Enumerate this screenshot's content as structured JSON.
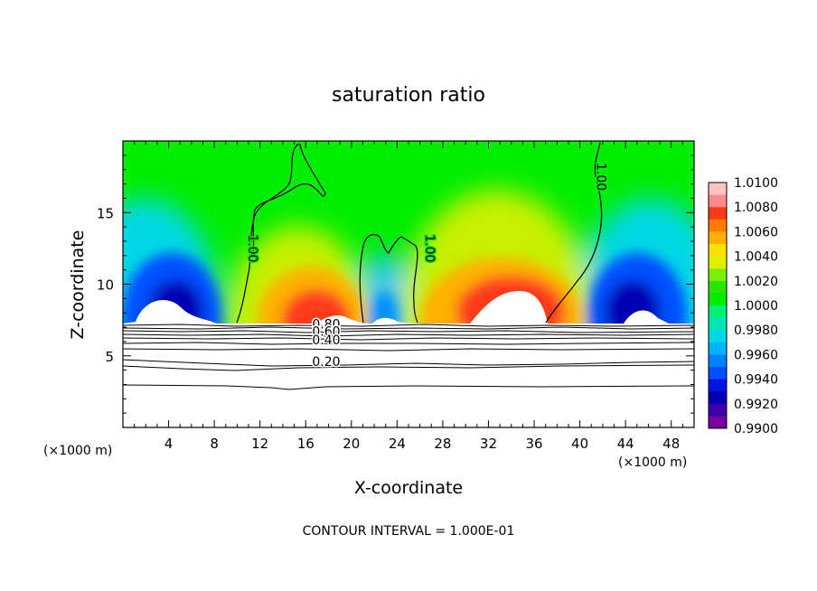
{
  "chart_data": {
    "type": "heatmap",
    "title": "saturation ratio",
    "xlabel": "X-coordinate",
    "ylabel": "Z-coordinate",
    "x_unit": "(×1000 m)",
    "x_unit_right": "(×1000 m)",
    "footer": "CONTOUR INTERVAL = 1.000E-01",
    "xlim": [
      0,
      50
    ],
    "ylim": [
      0,
      20
    ],
    "xticks": [
      4,
      8,
      12,
      16,
      20,
      24,
      28,
      32,
      36,
      40,
      44,
      48
    ],
    "xtick_labels": [
      "4",
      "8",
      "12",
      "16",
      "20",
      "24",
      "28",
      "32",
      "36",
      "40",
      "44",
      "48"
    ],
    "yticks": [
      5,
      10,
      15
    ],
    "ytick_labels": [
      "5",
      "10",
      "15"
    ],
    "colorbar": {
      "min": 0.99,
      "max": 1.01,
      "ticks": [
        "1.0100",
        "1.0080",
        "1.0060",
        "1.0040",
        "1.0020",
        "1.0000",
        "0.9980",
        "0.9960",
        "0.9940",
        "0.9920",
        "0.9900"
      ],
      "colors": [
        "#ffc2c2",
        "#ff8a8a",
        "#ff3a1a",
        "#ff7a00",
        "#ffb000",
        "#ffe000",
        "#ddf000",
        "#7af000",
        "#28e600",
        "#00ec00",
        "#00f07a",
        "#00e6b4",
        "#00d8e6",
        "#00b4ff",
        "#0082ff",
        "#0050ff",
        "#0014e6",
        "#0000b4",
        "#3c00aa",
        "#7800a0"
      ]
    },
    "contour_labels": [
      {
        "text": "1.00",
        "x": 11.0,
        "z": 12.5
      },
      {
        "text": "1.00",
        "x": 26.5,
        "z": 12.5
      },
      {
        "text": "1.00",
        "x": 41.5,
        "z": 17.5
      },
      {
        "text": "0.80",
        "x": 17.8,
        "z": 6.9
      },
      {
        "text": "0.60",
        "x": 17.8,
        "z": 6.4
      },
      {
        "text": "0.40",
        "x": 17.8,
        "z": 5.8
      },
      {
        "text": "0.20",
        "x": 17.8,
        "z": 4.3
      }
    ],
    "peaks": [
      {
        "x": 4.5,
        "z": 9.5,
        "value": 0.99
      },
      {
        "x": 17.5,
        "z": 9.0,
        "value": 1.01
      },
      {
        "x": 23.5,
        "z": 8.8,
        "value": 0.994
      },
      {
        "x": 33.0,
        "z": 10.5,
        "value": 1.01
      },
      {
        "x": 45.0,
        "z": 9.5,
        "value": 0.99
      }
    ]
  }
}
